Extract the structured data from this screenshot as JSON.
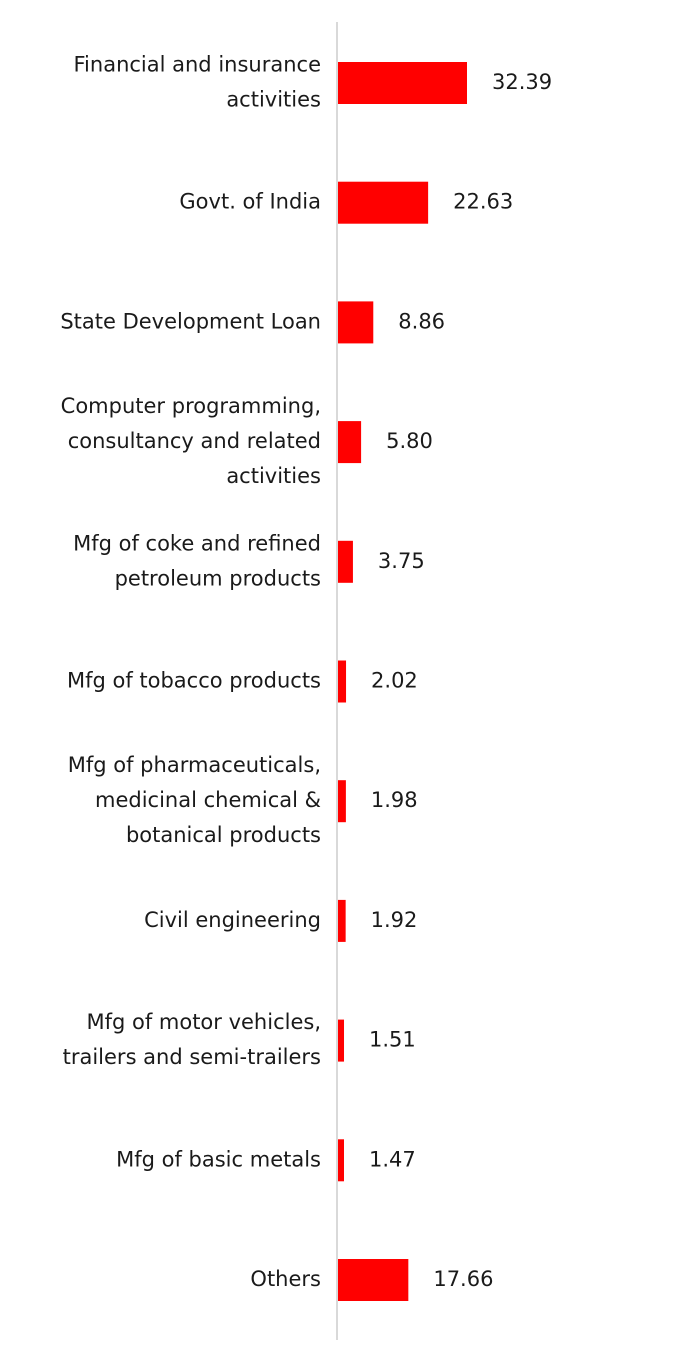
{
  "chart_data": {
    "type": "bar",
    "orientation": "horizontal",
    "categories": [
      [
        "Financial and insurance",
        "activities"
      ],
      [
        "Govt. of India"
      ],
      [
        "State Development Loan"
      ],
      [
        "Computer programming,",
        "consultancy and related",
        "activities"
      ],
      [
        "Mfg of coke and refined",
        "petroleum products"
      ],
      [
        "Mfg of tobacco products"
      ],
      [
        "Mfg of pharmaceuticals,",
        "medicinal chemical &",
        "botanical products"
      ],
      [
        "Civil engineering"
      ],
      [
        "Mfg of motor vehicles,",
        "trailers and semi-trailers"
      ],
      [
        "Mfg of basic metals"
      ],
      [
        "Others"
      ]
    ],
    "values": [
      32.39,
      22.63,
      8.86,
      5.8,
      3.75,
      2.02,
      1.98,
      1.92,
      1.51,
      1.47,
      17.66
    ],
    "value_labels": [
      "32.39",
      "22.63",
      "8.86",
      "5.80",
      "3.75",
      "2.02",
      "1.98",
      "1.92",
      "1.51",
      "1.47",
      "17.66"
    ],
    "bar_color": "#ff0000",
    "axis_color": "#d9d9d9",
    "title": "",
    "xlabel": "",
    "ylabel": "",
    "grid": false,
    "legend": "none"
  }
}
